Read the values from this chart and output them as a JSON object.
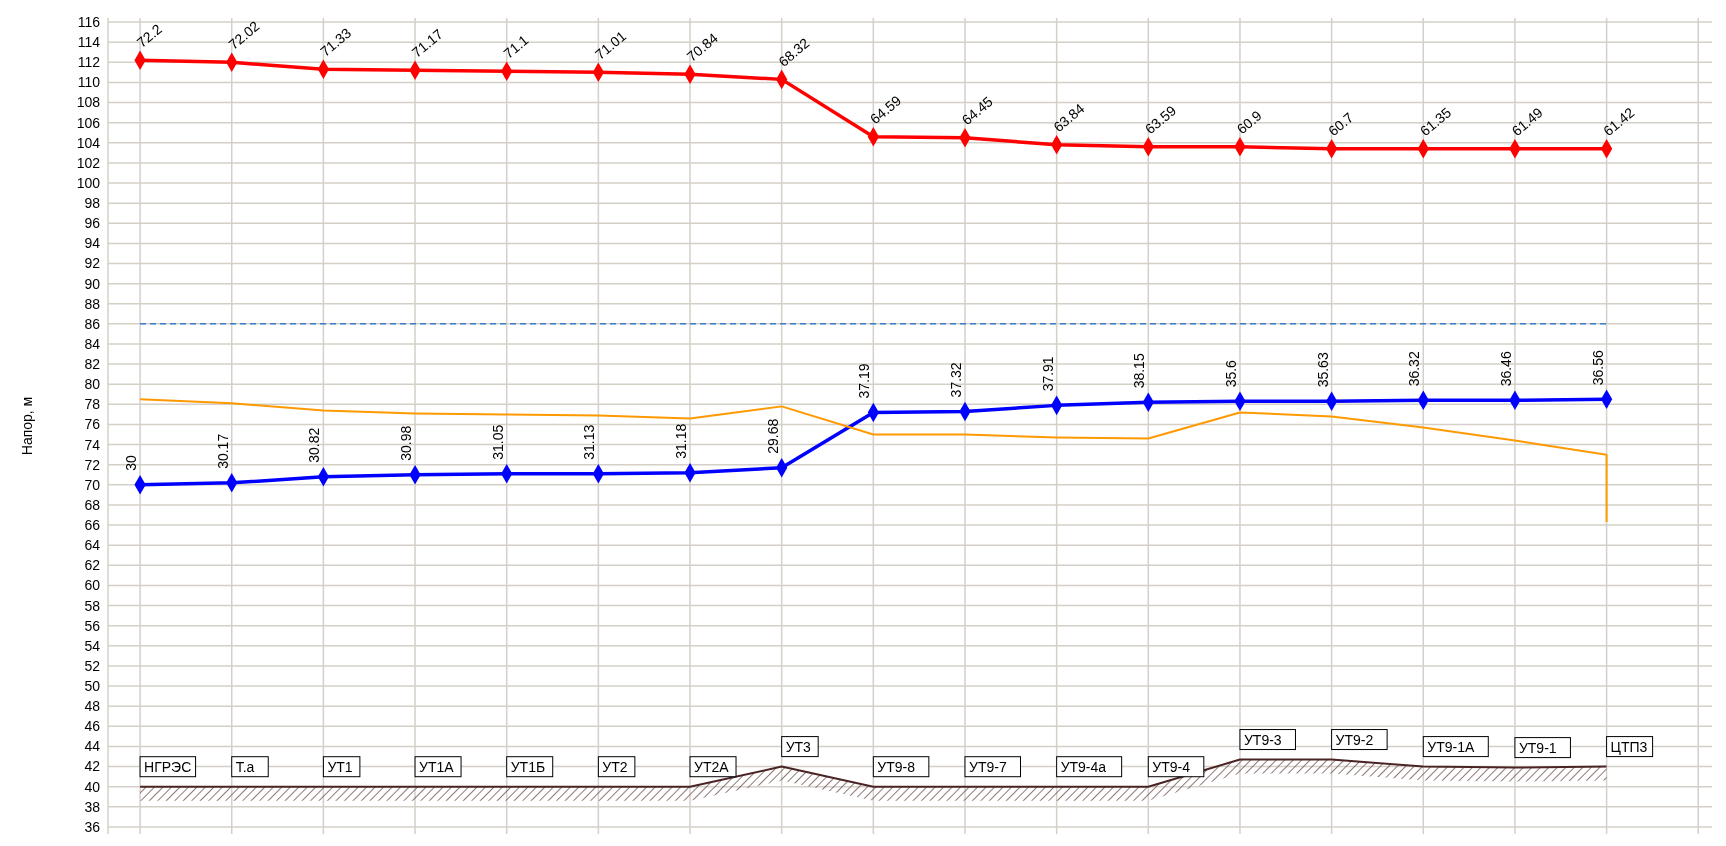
{
  "chart_data": {
    "type": "line",
    "ylabel": "Напор, м",
    "categories": [
      "НГРЭС",
      "Т.а",
      "УТ1",
      "УТ1А",
      "УТ1Б",
      "УТ2",
      "УТ2А",
      "УТ3",
      "УТ9-8",
      "УТ9-7",
      "УТ9-4а",
      "УТ9-4",
      "УТ9-3",
      "УТ9-2",
      "УТ9-1А",
      "УТ9-1",
      "ЦТП3"
    ],
    "ylim": [
      35.3,
      116.4
    ],
    "yticks": [
      36,
      38,
      40,
      42,
      44,
      46,
      48,
      50,
      52,
      54,
      56,
      58,
      60,
      62,
      64,
      66,
      68,
      70,
      72,
      74,
      76,
      78,
      80,
      82,
      84,
      86,
      88,
      90,
      92,
      94,
      96,
      98,
      100,
      102,
      104,
      106,
      108,
      110,
      112,
      114,
      116
    ],
    "grid": true,
    "series": [
      {
        "color": "#ff0000",
        "marker": "diamond",
        "values": [
          112.2,
          112.0,
          111.3,
          111.2,
          111.1,
          111.0,
          110.8,
          110.3,
          104.6,
          104.5,
          103.8,
          103.6,
          103.6,
          103.4,
          103.4,
          103.4,
          103.4
        ]
      },
      {
        "color": "#0000ff",
        "marker": "diamond",
        "values": [
          70.0,
          70.2,
          70.8,
          71.0,
          71.1,
          71.1,
          71.2,
          71.7,
          77.2,
          77.3,
          77.9,
          78.2,
          78.3,
          78.3,
          78.4,
          78.4,
          78.5
        ]
      },
      {
        "color": "#ff9900",
        "marker": "none",
        "x": [
          "НГРЭС",
          "Т.а",
          "УТ1",
          "УТ1А",
          "УТ1Б",
          "УТ2",
          "УТ2А",
          "УТ3",
          "УТ9-8",
          "УТ9-7",
          "УТ9-4а",
          "УТ9-4",
          "УТ9-3",
          "УТ9-2",
          "УТ9-1А",
          "УТ9-1",
          "ЦТП3",
          "ЦТП3"
        ],
        "values": [
          78.5,
          78.1,
          77.4,
          77.1,
          77.0,
          76.9,
          76.6,
          77.8,
          75.0,
          75.0,
          74.7,
          74.6,
          77.2,
          76.8,
          75.7,
          74.4,
          73.0,
          66.3
        ]
      },
      {
        "color": "#4a2424",
        "marker": "none",
        "values": [
          40,
          40,
          40,
          40,
          40,
          40,
          40,
          42,
          40,
          40,
          40,
          40,
          42.7,
          42.7,
          42.0,
          41.9,
          42.0
        ]
      }
    ],
    "annotations": [
      {
        "text": "72.2",
        "x": "НГРЭС",
        "y": 112.2
      },
      {
        "text": "72.02",
        "x": "Т.а",
        "y": 112.0
      },
      {
        "text": "71.33",
        "x": "УТ1",
        "y": 111.3
      },
      {
        "text": "71.17",
        "x": "УТ1А",
        "y": 111.2
      },
      {
        "text": "71.1",
        "x": "УТ1Б",
        "y": 111.1
      },
      {
        "text": "71.01",
        "x": "УТ2",
        "y": 111.0
      },
      {
        "text": "70.84",
        "x": "УТ2А",
        "y": 110.8
      },
      "68.32",
      {
        "text": "64.59",
        "x": "УТ9-8",
        "y": 104.6
      },
      {
        "text": "64.45",
        "x": "УТ9-7",
        "y": 104.5
      },
      {
        "text": "63.84",
        "x": "УТ9-4а",
        "y": 103.8
      },
      {
        "text": "63.59",
        "x": "УТ9-4",
        "y": 103.6
      },
      {
        "text": "60.9",
        "x": "УТ9-3",
        "y": 103.6
      },
      {
        "text": "60.7",
        "x": "УТ9-2",
        "y": 103.4
      },
      {
        "text": "61.35",
        "x": "УТ9-1А",
        "y": 103.4
      },
      {
        "text": "61.49",
        "x": "УТ9-1",
        "y": 103.4
      },
      "61.42",
      {
        "text": "30",
        "x": "НГРЭС",
        "y": 70.0
      },
      {
        "text": "30.17",
        "x": "Т.а",
        "y": 70.2
      },
      {
        "text": "30.82",
        "x": "УТ1",
        "y": 70.8
      },
      {
        "text": "30.98",
        "x": "УТ1А",
        "y": 71.0
      },
      {
        "text": "31.05",
        "x": "УТ1Б",
        "y": 71.1
      },
      {
        "text": "31.13",
        "x": "УТ2",
        "y": 71.1
      },
      {
        "text": "31.18",
        "x": "УТ2А",
        "y": 71.2
      },
      "29.68",
      {
        "text": "37.19",
        "x": "УТ9-8",
        "y": 77.2
      },
      {
        "text": "37.32",
        "x": "УТ9-7",
        "y": 77.3
      },
      {
        "text": "37.91",
        "x": "УТ9-4а",
        "y": 77.9
      },
      {
        "text": "38.15",
        "x": "УТ9-4",
        "y": 78.2
      },
      {
        "text": "35.6",
        "x": "УТ9-3",
        "y": 78.3
      },
      {
        "text": "35.63",
        "x": "УТ9-2",
        "y": 78.3
      },
      {
        "text": "36.32",
        "x": "УТ9-1А",
        "y": 78.4
      },
      {
        "text": "36.46",
        "x": "УТ9-1",
        "y": 78.4
      },
      "36.56"
    ],
    "ref_lines": [
      {
        "axis": "y",
        "value": 86,
        "color": "#3d7cc9",
        "line_style": "dashed"
      }
    ]
  }
}
